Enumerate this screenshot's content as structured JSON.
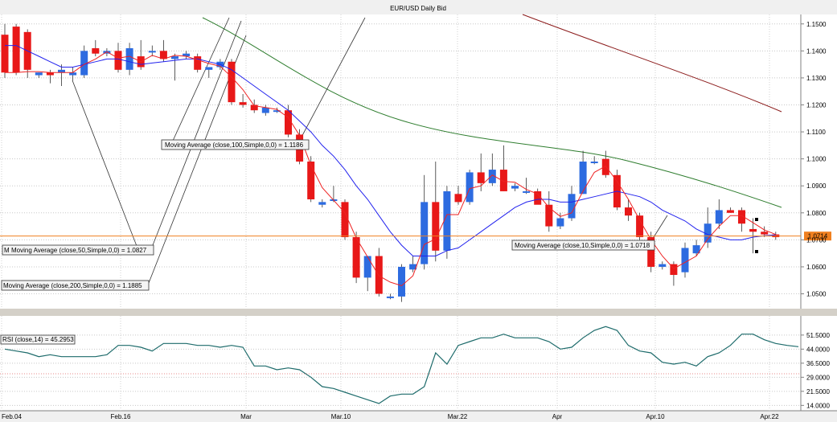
{
  "window": {
    "title": "EUR/USD Daily Bid"
  },
  "chart_data": [
    {
      "type": "candlestick",
      "title": "EUR/USD Daily Bid",
      "price_axis_ticks": [
        "1.1500",
        "1.1400",
        "1.1300",
        "1.1200",
        "1.1100",
        "1.1000",
        "1.0900",
        "1.0800",
        "1.0700",
        "1.0600",
        "1.0500"
      ],
      "ylim": [
        1.0445,
        1.1535
      ],
      "date_labels": [
        "Feb.04",
        "Feb.16",
        "Mar",
        "Mar.10",
        "Mar.22",
        "Apr",
        "Apr.10",
        "Apr.22"
      ],
      "grid": true,
      "current_price": "1.0714",
      "candles": [
        {
          "o": 1.146,
          "h": 1.15,
          "l": 1.13,
          "c": 1.132
        },
        {
          "o": 1.149,
          "h": 1.15,
          "l": 1.131,
          "c": 1.132
        },
        {
          "o": 1.147,
          "h": 1.148,
          "l": 1.13,
          "c": 1.133
        },
        {
          "o": 1.131,
          "h": 1.132,
          "l": 1.13,
          "c": 1.132
        },
        {
          "o": 1.132,
          "h": 1.133,
          "l": 1.128,
          "c": 1.131
        },
        {
          "o": 1.132,
          "h": 1.135,
          "l": 1.127,
          "c": 1.133
        },
        {
          "o": 1.131,
          "h": 1.134,
          "l": 1.129,
          "c": 1.132
        },
        {
          "o": 1.131,
          "h": 1.142,
          "l": 1.13,
          "c": 1.14
        },
        {
          "o": 1.141,
          "h": 1.144,
          "l": 1.138,
          "c": 1.139
        },
        {
          "o": 1.139,
          "h": 1.141,
          "l": 1.138,
          "c": 1.14
        },
        {
          "o": 1.14,
          "h": 1.143,
          "l": 1.132,
          "c": 1.133
        },
        {
          "o": 1.133,
          "h": 1.143,
          "l": 1.131,
          "c": 1.141
        },
        {
          "o": 1.138,
          "h": 1.144,
          "l": 1.133,
          "c": 1.134
        },
        {
          "o": 1.14,
          "h": 1.142,
          "l": 1.138,
          "c": 1.14
        },
        {
          "o": 1.14,
          "h": 1.144,
          "l": 1.136,
          "c": 1.137
        },
        {
          "o": 1.137,
          "h": 1.139,
          "l": 1.129,
          "c": 1.138
        },
        {
          "o": 1.138,
          "h": 1.14,
          "l": 1.137,
          "c": 1.139
        },
        {
          "o": 1.138,
          "h": 1.139,
          "l": 1.132,
          "c": 1.133
        },
        {
          "o": 1.133,
          "h": 1.134,
          "l": 1.13,
          "c": 1.134
        },
        {
          "o": 1.134,
          "h": 1.137,
          "l": 1.133,
          "c": 1.136
        },
        {
          "o": 1.136,
          "h": 1.137,
          "l": 1.12,
          "c": 1.121
        },
        {
          "o": 1.121,
          "h": 1.124,
          "l": 1.119,
          "c": 1.12
        },
        {
          "o": 1.12,
          "h": 1.122,
          "l": 1.117,
          "c": 1.118
        },
        {
          "o": 1.117,
          "h": 1.12,
          "l": 1.116,
          "c": 1.119
        },
        {
          "o": 1.118,
          "h": 1.119,
          "l": 1.117,
          "c": 1.118
        },
        {
          "o": 1.118,
          "h": 1.12,
          "l": 1.108,
          "c": 1.109
        },
        {
          "o": 1.109,
          "h": 1.111,
          "l": 1.098,
          "c": 1.099
        },
        {
          "o": 1.099,
          "h": 1.101,
          "l": 1.084,
          "c": 1.085
        },
        {
          "o": 1.083,
          "h": 1.085,
          "l": 1.082,
          "c": 1.084
        },
        {
          "o": 1.085,
          "h": 1.09,
          "l": 1.084,
          "c": 1.085
        },
        {
          "o": 1.084,
          "h": 1.085,
          "l": 1.07,
          "c": 1.071
        },
        {
          "o": 1.071,
          "h": 1.073,
          "l": 1.054,
          "c": 1.056
        },
        {
          "o": 1.056,
          "h": 1.064,
          "l": 1.051,
          "c": 1.064
        },
        {
          "o": 1.064,
          "h": 1.067,
          "l": 1.049,
          "c": 1.05
        },
        {
          "o": 1.049,
          "h": 1.05,
          "l": 1.048,
          "c": 1.049
        },
        {
          "o": 1.049,
          "h": 1.061,
          "l": 1.047,
          "c": 1.06
        },
        {
          "o": 1.059,
          "h": 1.064,
          "l": 1.058,
          "c": 1.061
        },
        {
          "o": 1.061,
          "h": 1.094,
          "l": 1.059,
          "c": 1.084
        },
        {
          "o": 1.084,
          "h": 1.099,
          "l": 1.062,
          "c": 1.066
        },
        {
          "o": 1.066,
          "h": 1.09,
          "l": 1.063,
          "c": 1.088
        },
        {
          "o": 1.087,
          "h": 1.09,
          "l": 1.083,
          "c": 1.084
        },
        {
          "o": 1.084,
          "h": 1.096,
          "l": 1.083,
          "c": 1.095
        },
        {
          "o": 1.095,
          "h": 1.102,
          "l": 1.088,
          "c": 1.091
        },
        {
          "o": 1.091,
          "h": 1.102,
          "l": 1.09,
          "c": 1.096
        },
        {
          "o": 1.096,
          "h": 1.105,
          "l": 1.088,
          "c": 1.088
        },
        {
          "o": 1.089,
          "h": 1.091,
          "l": 1.088,
          "c": 1.09
        },
        {
          "o": 1.088,
          "h": 1.093,
          "l": 1.087,
          "c": 1.088
        },
        {
          "o": 1.088,
          "h": 1.089,
          "l": 1.084,
          "c": 1.083
        },
        {
          "o": 1.083,
          "h": 1.088,
          "l": 1.073,
          "c": 1.075
        },
        {
          "o": 1.075,
          "h": 1.08,
          "l": 1.074,
          "c": 1.078
        },
        {
          "o": 1.078,
          "h": 1.09,
          "l": 1.077,
          "c": 1.087
        },
        {
          "o": 1.087,
          "h": 1.103,
          "l": 1.087,
          "c": 1.099
        },
        {
          "o": 1.099,
          "h": 1.101,
          "l": 1.098,
          "c": 1.099
        },
        {
          "o": 1.1,
          "h": 1.103,
          "l": 1.093,
          "c": 1.094
        },
        {
          "o": 1.094,
          "h": 1.096,
          "l": 1.081,
          "c": 1.082
        },
        {
          "o": 1.082,
          "h": 1.085,
          "l": 1.077,
          "c": 1.079
        },
        {
          "o": 1.079,
          "h": 1.08,
          "l": 1.07,
          "c": 1.071
        },
        {
          "o": 1.071,
          "h": 1.073,
          "l": 1.058,
          "c": 1.06
        },
        {
          "o": 1.06,
          "h": 1.062,
          "l": 1.059,
          "c": 1.061
        },
        {
          "o": 1.061,
          "h": 1.062,
          "l": 1.053,
          "c": 1.057
        },
        {
          "o": 1.058,
          "h": 1.069,
          "l": 1.056,
          "c": 1.067
        },
        {
          "o": 1.065,
          "h": 1.07,
          "l": 1.064,
          "c": 1.068
        },
        {
          "o": 1.069,
          "h": 1.082,
          "l": 1.067,
          "c": 1.076
        },
        {
          "o": 1.076,
          "h": 1.085,
          "l": 1.074,
          "c": 1.081
        },
        {
          "o": 1.081,
          "h": 1.082,
          "l": 1.08,
          "c": 1.08
        },
        {
          "o": 1.081,
          "h": 1.082,
          "l": 1.073,
          "c": 1.076
        },
        {
          "o": 1.074,
          "h": 1.078,
          "l": 1.065,
          "c": 1.073
        },
        {
          "o": 1.073,
          "h": 1.075,
          "l": 1.071,
          "c": 1.072
        },
        {
          "o": 1.072,
          "h": 1.073,
          "l": 1.07,
          "c": 1.071
        }
      ],
      "series": [
        {
          "name": "Moving Average (close,10,Simple,0,0)",
          "label": "Moving Average (close,10,Simple,0,0) = 1.0718",
          "values": [
            1.142,
            1.142,
            1.14,
            1.138,
            1.136,
            1.134,
            1.134,
            1.135,
            1.136,
            1.137,
            1.137,
            1.136,
            1.135,
            1.1355,
            1.136,
            1.1365,
            1.137,
            1.137,
            1.136,
            1.135,
            1.133,
            1.13,
            1.127,
            1.124,
            1.121,
            1.118,
            1.114,
            1.11,
            1.105,
            1.101,
            1.096,
            1.09,
            1.085,
            1.079,
            1.073,
            1.068,
            1.064,
            1.064,
            1.064,
            1.066,
            1.067,
            1.07,
            1.073,
            1.076,
            1.079,
            1.082,
            1.084,
            1.085,
            1.085,
            1.084,
            1.084,
            1.085,
            1.086,
            1.087,
            1.088,
            1.087,
            1.086,
            1.084,
            1.081,
            1.079,
            1.077,
            1.074,
            1.072,
            1.071,
            1.07,
            1.07,
            1.071,
            1.0715,
            1.0718
          ]
        },
        {
          "name": "Moving Average (close,50,Simple,0,0)",
          "label": "Moving Average (close,50,Simple,0,0) = 1.0827",
          "values": []
        },
        {
          "name": "Moving Average (close,100,Simple,0,0)",
          "label": "Moving Average (close,100,Simple,0,0) = 1.1186",
          "values": []
        },
        {
          "name": "Moving Average (close,200,Simple,0,0)",
          "label": "Moving Average (close,200,Simple,0,0) = 1.1885",
          "values": []
        }
      ]
    },
    {
      "type": "line",
      "title": "RSI (close,14) = 45.2953",
      "ylim": [
        12,
        60
      ],
      "ticks": [
        "51.5000",
        "44.0000",
        "36.5000",
        "29.0000",
        "21.5000",
        "14.0000"
      ],
      "series": [
        {
          "name": "RSI (close,14)",
          "values": [
            44,
            43,
            42,
            40,
            41,
            40,
            40,
            40,
            40,
            41,
            46,
            46,
            45,
            43,
            47,
            47,
            47,
            46,
            46,
            45,
            46,
            45,
            35,
            35,
            33,
            34,
            33,
            29,
            24,
            23,
            21,
            19,
            17,
            15,
            19,
            20,
            20,
            24,
            42,
            36,
            46,
            48,
            50,
            50,
            52,
            50,
            50,
            50,
            48,
            44,
            45,
            50,
            54,
            56,
            54,
            46,
            43,
            42,
            37,
            36,
            37,
            35,
            40,
            42,
            46,
            52,
            52,
            49,
            47,
            46,
            45.3
          ]
        }
      ]
    }
  ]
}
